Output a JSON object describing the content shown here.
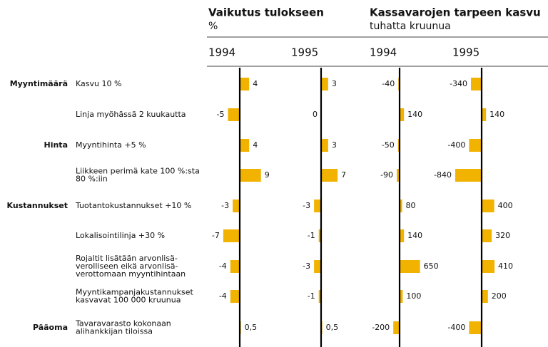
{
  "chart_data": {
    "type": "bar",
    "color": "#f2b200",
    "groups": [
      {
        "title": "Vaikutus tulokseen",
        "unit": "%",
        "xlim": [
          -10,
          10
        ]
      },
      {
        "title": "Kassavarojen tarpeen kasvu",
        "unit": "tuhatta kruunua",
        "xlim": [
          -1000,
          1000
        ]
      }
    ],
    "columns": [
      {
        "year": "1994",
        "group": 0
      },
      {
        "year": "1995",
        "group": 0
      },
      {
        "year": "1994",
        "group": 1
      },
      {
        "year": "1995",
        "group": 1
      }
    ],
    "rows": [
      {
        "category": "Myyntimäärä",
        "label": [
          "Kasvu 10 %"
        ],
        "values": [
          4,
          3,
          -40,
          -340
        ]
      },
      {
        "label": [
          "Linja myöhässä 2 kuukautta"
        ],
        "values": [
          -5,
          0,
          140,
          140
        ]
      },
      {
        "category": "Hinta",
        "label": [
          "Myyntihinta +5 %"
        ],
        "values": [
          4,
          3,
          -50,
          -400
        ]
      },
      {
        "label": [
          "Liikkeen perimä kate 100 %:sta",
          "80 %:iin"
        ],
        "values": [
          9,
          7,
          -90,
          -840
        ]
      },
      {
        "category": "Kustannukset",
        "label": [
          "Tuotantokustannukset +10 %"
        ],
        "values": [
          -3,
          -3,
          80,
          400
        ]
      },
      {
        "label": [
          "Lokalisointilinja +30 %"
        ],
        "values": [
          -7,
          -1,
          140,
          320
        ]
      },
      {
        "label": [
          "Rojaltit lisätään arvonlisä-",
          "verolliseen eikä arvonlisä-",
          "verottomaan myyntihintaan"
        ],
        "values": [
          -4,
          -3,
          650,
          410
        ]
      },
      {
        "label": [
          "Myyntikampanjakustannukset",
          "kasvavat 100 000 kruunua"
        ],
        "values": [
          -4,
          -1,
          100,
          200
        ]
      },
      {
        "category": "Pääoma",
        "label": [
          "Tavaravarasto kokonaan",
          "alihankkijan tiloissa"
        ],
        "values": [
          0.5,
          0.5,
          -200,
          -400
        ],
        "value_labels": [
          "0,5",
          "0,5",
          "-200",
          "-400"
        ]
      }
    ]
  }
}
